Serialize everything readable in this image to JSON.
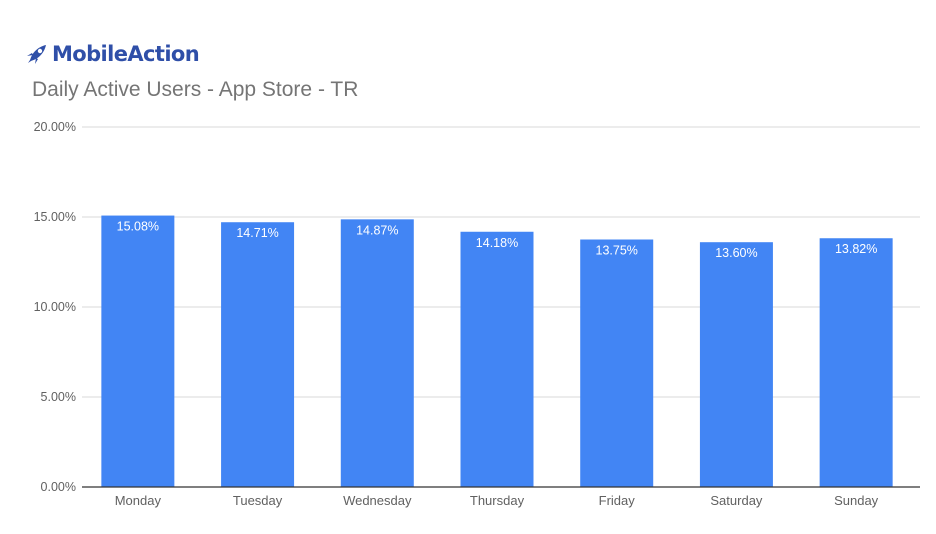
{
  "brand": {
    "name": "MobileAction",
    "color": "#2f4fa8"
  },
  "title": "Daily Active Users - App Store - TR",
  "chart_data": {
    "type": "bar",
    "categories": [
      "Monday",
      "Tuesday",
      "Wednesday",
      "Thursday",
      "Friday",
      "Saturday",
      "Sunday"
    ],
    "values": [
      15.08,
      14.71,
      14.87,
      14.18,
      13.75,
      13.6,
      13.82
    ],
    "value_labels": [
      "15.08%",
      "14.71%",
      "14.87%",
      "14.18%",
      "13.75%",
      "13.60%",
      "13.82%"
    ],
    "unit": "%",
    "ylim": [
      0,
      20
    ],
    "yticks": [
      0,
      5,
      10,
      15,
      20
    ],
    "ytick_labels": [
      "0.00%",
      "5.00%",
      "10.00%",
      "15.00%",
      "20.00%"
    ],
    "grid": true,
    "legend": "none",
    "bar_color": "#4285f4",
    "grid_color": "#d9d9d9",
    "axis_color": "#333333"
  }
}
